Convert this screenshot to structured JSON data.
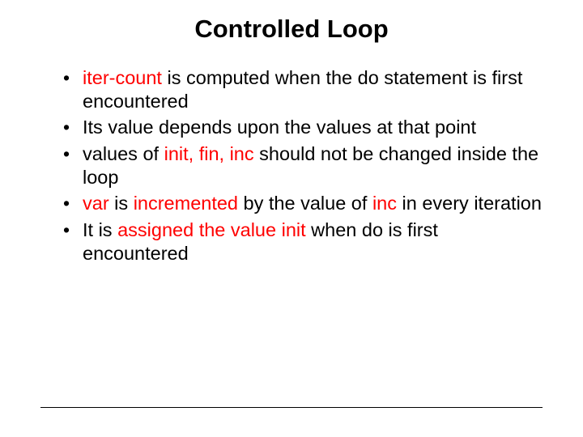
{
  "title": "Controlled Loop",
  "bullets": {
    "b0": {
      "p0": "iter-count",
      "p1": " is computed when the do statement is first encountered"
    },
    "b1": {
      "p0": "Its value depends upon the values at that point"
    },
    "b2": {
      "p0": "values of ",
      "p1": "init, fin, inc",
      "p2": " should not be changed inside the loop"
    },
    "b3": {
      "p0": "var",
      "p1": " is ",
      "p2": "incremented",
      "p3": " by the value of ",
      "p4": "inc",
      "p5": " in every iteration"
    },
    "b4": {
      "p0": "It is ",
      "p1": "assigned the value init",
      "p2": " when do is first encountered"
    }
  },
  "colors": {
    "keyword": "#ff0000",
    "text": "#000000",
    "background": "#ffffff"
  },
  "typography": {
    "title_fontsize": 31,
    "body_fontsize": 23.5,
    "font_family": "Arial"
  }
}
